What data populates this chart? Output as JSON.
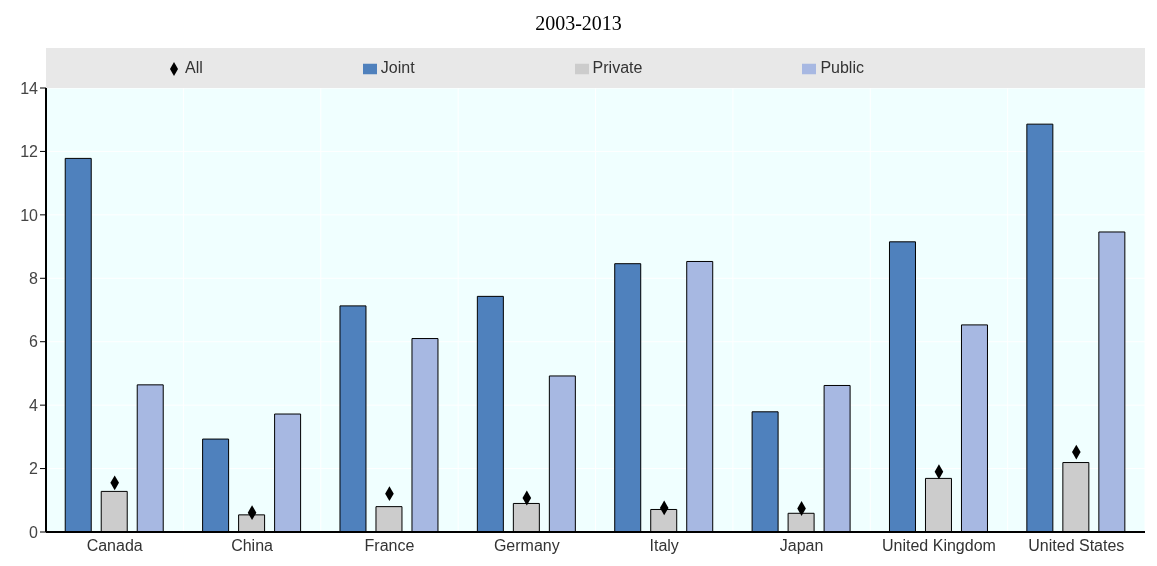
{
  "chart_data": {
    "type": "bar",
    "title": "2003-2013",
    "categories": [
      "Canada",
      "China",
      "France",
      "Germany",
      "Italy",
      "Japan",
      "United Kingdom",
      "United States"
    ],
    "series": [
      {
        "name": "Joint",
        "color": "#4f81bd",
        "values": [
          11.78,
          2.93,
          7.13,
          7.43,
          8.46,
          3.79,
          9.15,
          12.86
        ]
      },
      {
        "name": "Private",
        "color": "#cccccc",
        "values": [
          1.28,
          0.54,
          0.8,
          0.9,
          0.71,
          0.59,
          1.69,
          2.19
        ]
      },
      {
        "name": "Public",
        "color": "#a7b8e2",
        "values": [
          4.64,
          3.72,
          6.1,
          4.92,
          8.53,
          4.62,
          6.53,
          9.46
        ]
      },
      {
        "name": "All",
        "type": "scatter",
        "color": "#000000",
        "marker": "diamond",
        "values": [
          1.55,
          0.61,
          1.21,
          1.07,
          0.76,
          0.74,
          1.9,
          2.52
        ]
      }
    ],
    "ylim": [
      0,
      14
    ],
    "yticks": [
      0,
      2,
      4,
      6,
      8,
      10,
      12,
      14
    ],
    "grid": true,
    "legend": "top"
  }
}
